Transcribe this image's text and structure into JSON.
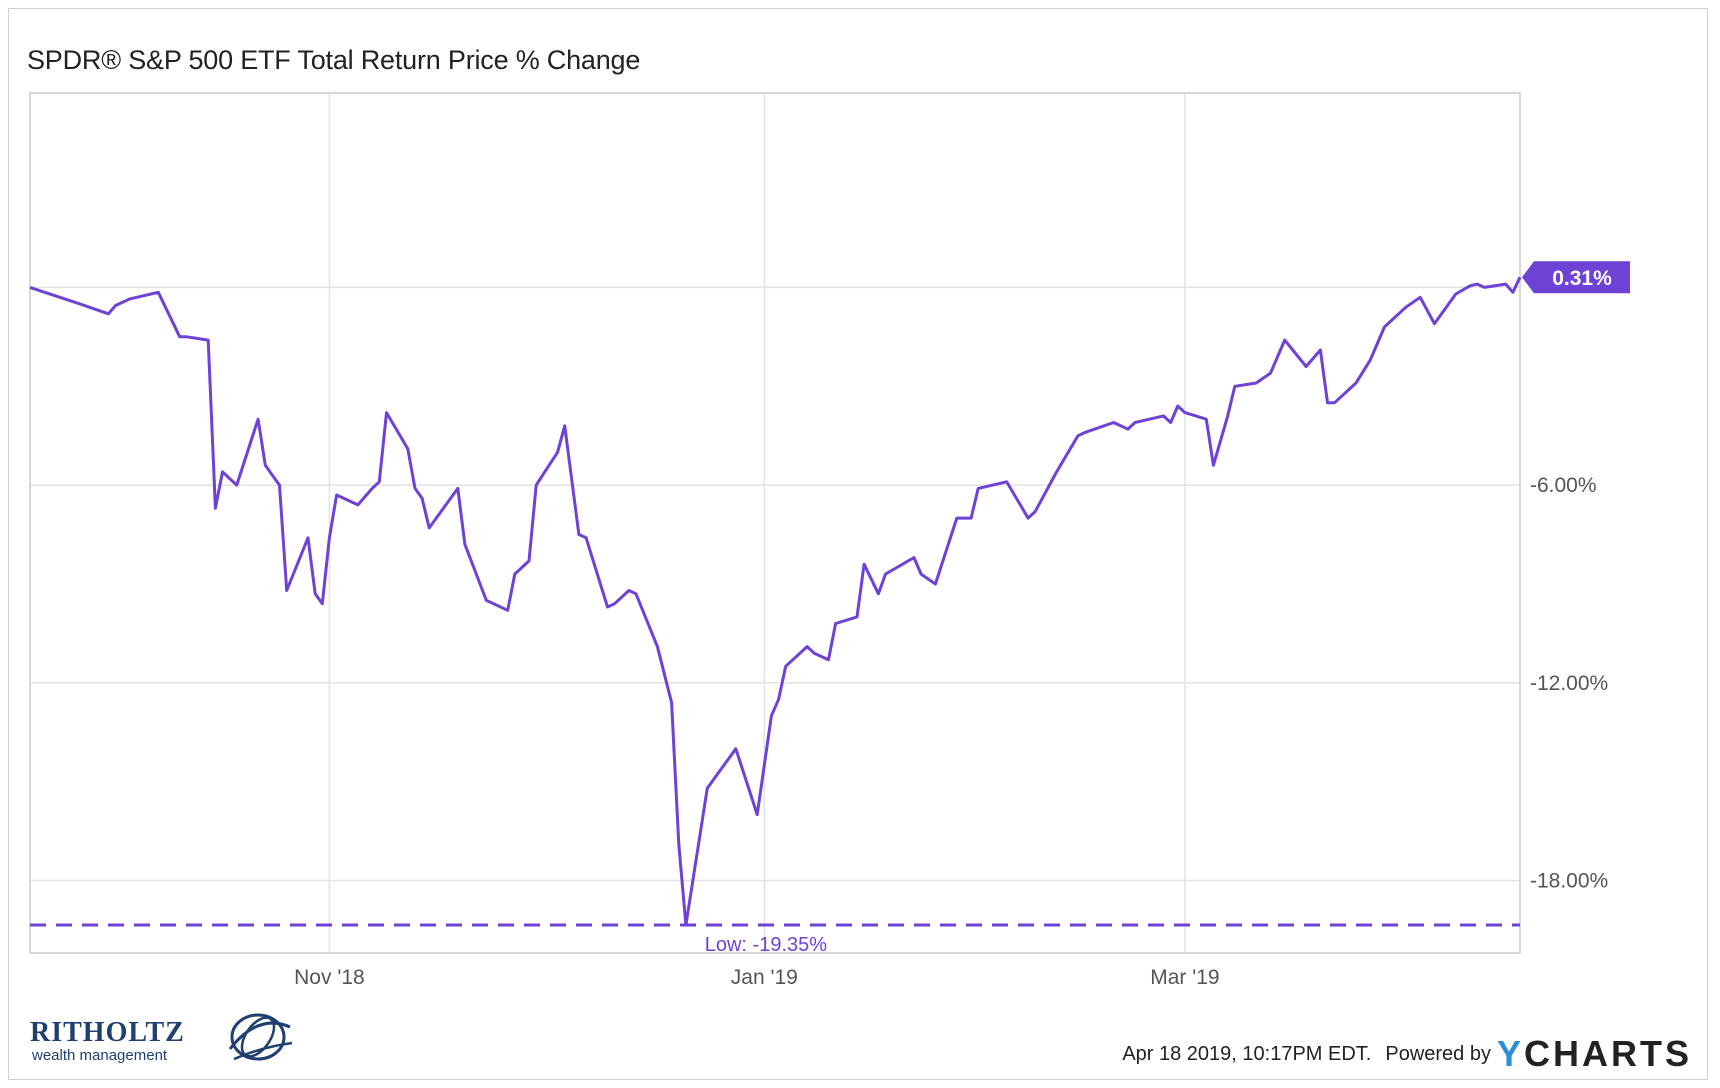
{
  "chart_data": {
    "type": "line",
    "title": "SPDR® S&P 500 ETF Total Return Price % Change",
    "series": [
      {
        "color": "#6f42d6",
        "x": [
          "2018-09-20",
          "2018-09-27",
          "2018-10-01",
          "2018-10-02",
          "2018-10-04",
          "2018-10-08",
          "2018-10-11",
          "2018-10-12",
          "2018-10-15",
          "2018-10-16",
          "2018-10-17",
          "2018-10-19",
          "2018-10-22",
          "2018-10-23",
          "2018-10-24",
          "2018-10-25",
          "2018-10-26",
          "2018-10-29",
          "2018-10-30",
          "2018-10-31",
          "2018-11-01",
          "2018-11-02",
          "2018-11-05",
          "2018-11-07",
          "2018-11-08",
          "2018-11-09",
          "2018-11-12",
          "2018-11-13",
          "2018-11-14",
          "2018-11-15",
          "2018-11-19",
          "2018-11-20",
          "2018-11-23",
          "2018-11-26",
          "2018-11-27",
          "2018-11-29",
          "2018-11-30",
          "2018-12-03",
          "2018-12-04",
          "2018-12-06",
          "2018-12-07",
          "2018-12-10",
          "2018-12-11",
          "2018-12-13",
          "2018-12-14",
          "2018-12-17",
          "2018-12-19",
          "2018-12-20",
          "2018-12-21",
          "2018-12-24",
          "2018-12-26",
          "2018-12-27",
          "2018-12-28",
          "2018-12-31",
          "2019-01-02",
          "2019-01-03",
          "2019-01-04",
          "2019-01-07",
          "2019-01-08",
          "2019-01-10",
          "2019-01-11",
          "2019-01-14",
          "2019-01-15",
          "2019-01-17",
          "2019-01-18",
          "2019-01-22",
          "2019-01-23",
          "2019-01-25",
          "2019-01-28",
          "2019-01-30",
          "2019-01-31",
          "2019-02-04",
          "2019-02-07",
          "2019-02-08",
          "2019-02-11",
          "2019-02-14",
          "2019-02-15",
          "2019-02-19",
          "2019-02-21",
          "2019-02-22",
          "2019-02-26",
          "2019-02-27",
          "2019-02-28",
          "2019-03-01",
          "2019-03-04",
          "2019-03-05",
          "2019-03-07",
          "2019-03-08",
          "2019-03-11",
          "2019-03-13",
          "2019-03-15",
          "2019-03-18",
          "2019-03-20",
          "2019-03-21",
          "2019-03-22",
          "2019-03-25",
          "2019-03-27",
          "2019-03-29",
          "2019-04-01",
          "2019-04-03",
          "2019-04-05",
          "2019-04-08",
          "2019-04-10",
          "2019-04-11",
          "2019-04-12",
          "2019-04-15",
          "2019-04-16",
          "2019-04-17"
        ],
        "y": [
          0,
          -0.5,
          -0.8,
          -0.55,
          -0.35,
          -0.15,
          -1.5,
          -1.5,
          -1.6,
          -6.7,
          -5.6,
          -6.0,
          -4.0,
          -5.4,
          -5.7,
          -6.0,
          -9.2,
          -7.6,
          -9.3,
          -9.6,
          -7.6,
          -6.3,
          -6.6,
          -6.1,
          -5.9,
          -3.8,
          -4.9,
          -6.1,
          -6.4,
          -7.3,
          -6.1,
          -7.8,
          -9.5,
          -9.8,
          -8.7,
          -8.3,
          -6.0,
          -5.0,
          -4.2,
          -7.5,
          -7.6,
          -9.7,
          -9.6,
          -9.2,
          -9.3,
          -10.9,
          -12.6,
          -16.9,
          -19.35,
          -15.2,
          -14.6,
          -14.3,
          -14.0,
          -16.0,
          -13.0,
          -12.5,
          -11.5,
          -10.9,
          -11.1,
          -11.3,
          -10.2,
          -10.0,
          -8.4,
          -9.3,
          -8.7,
          -8.2,
          -8.7,
          -9.0,
          -7.0,
          -7.0,
          -6.1,
          -5.9,
          -7.0,
          -6.8,
          -5.6,
          -4.5,
          -4.4,
          -4.1,
          -4.3,
          -4.1,
          -3.9,
          -4.1,
          -3.6,
          -3.8,
          -4.0,
          -5.4,
          -3.9,
          -3.0,
          -2.9,
          -2.6,
          -1.6,
          -2.4,
          -1.9,
          -3.5,
          -3.5,
          -2.9,
          -2.2,
          -1.2,
          -0.6,
          -0.3,
          -1.1,
          -0.2,
          0.05,
          0.1,
          0.0,
          0.1,
          -0.15,
          0.31
        ]
      }
    ],
    "x_ticks": [
      {
        "date": "2018-11-01",
        "label": "Nov '18"
      },
      {
        "date": "2019-01-01",
        "label": "Jan '19"
      },
      {
        "date": "2019-03-01",
        "label": "Mar '19"
      }
    ],
    "y_ticks": [
      {
        "value": -6,
        "label": "-6.00%"
      },
      {
        "value": -12,
        "label": "-12.00%"
      },
      {
        "value": -18,
        "label": "-18.00%"
      }
    ],
    "ylim": [
      -20.2,
      5.9
    ],
    "xlim": [
      "2018-09-20",
      "2019-04-17"
    ],
    "grid": true,
    "reference_line": {
      "value": -19.35,
      "label": "Low: -19.35%",
      "style": "dashed"
    },
    "last_value_label": "0.31%"
  },
  "footer": {
    "timestamp": "Apr 18 2019, 10:17PM EDT.",
    "powered_by": "Powered by",
    "brand_y": "Y",
    "brand_rest": "CHARTS"
  },
  "logo": {
    "name": "RITHOLTZ",
    "subtitle": "wealth management"
  }
}
